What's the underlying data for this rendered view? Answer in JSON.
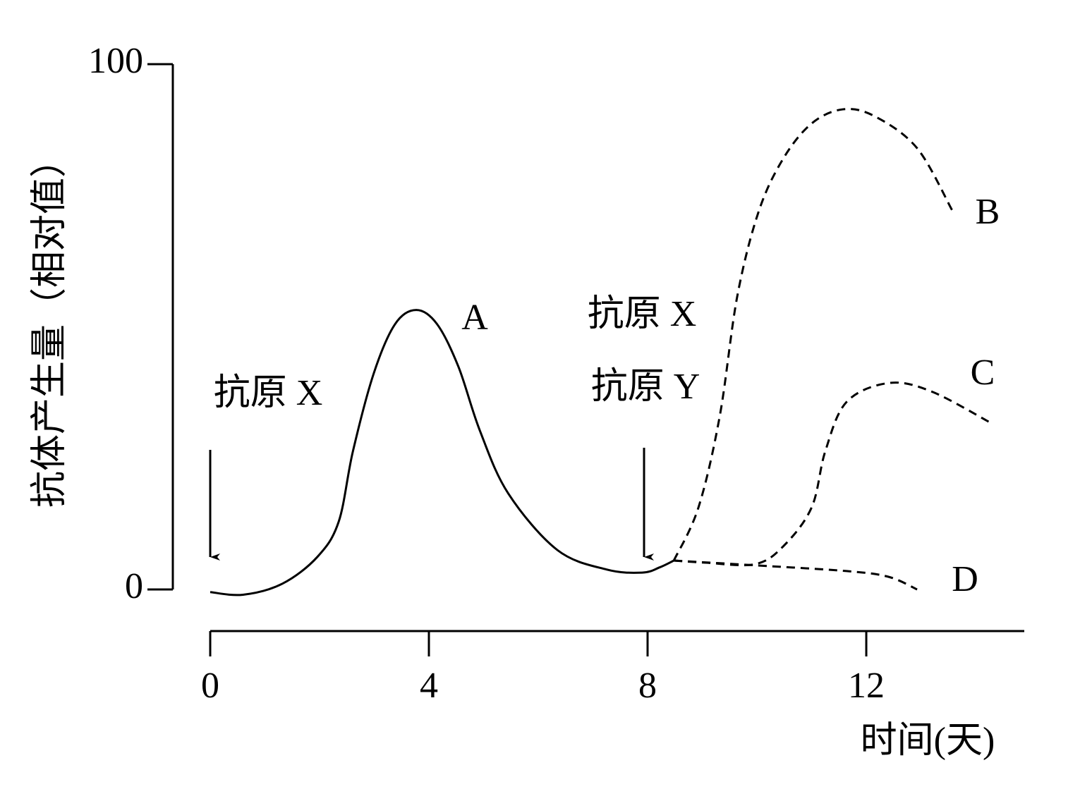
{
  "chart_data": {
    "type": "line",
    "ylabel": "抗体产生量（相对值）",
    "xlabel": "时间(天)",
    "xlim": [
      0,
      14.89
    ],
    "xticks": [
      0,
      4,
      8,
      12
    ],
    "ylim": [
      0,
      100
    ],
    "yticks": [
      0,
      100
    ],
    "annotations": [
      "抗原 X",
      "抗原 X",
      "抗原 Y"
    ],
    "series": [
      {
        "name": "A",
        "color": "#000000",
        "style": "solid",
        "x": [
          0,
          0.6,
          1.32,
          1.96,
          2.35,
          2.61,
          2.99,
          3.38,
          3.77,
          4.15,
          4.54,
          4.93,
          5.45,
          6.35,
          7.25,
          7.9,
          8.22,
          8.48
        ],
        "values": [
          -0.5,
          -1,
          1.1,
          6.2,
          12.9,
          26.3,
          41.1,
          50.5,
          53.2,
          50.5,
          42.4,
          30.3,
          18.3,
          7.5,
          3.8,
          3.2,
          4.2,
          5.5
        ]
      },
      {
        "name": "B",
        "color": "#000000",
        "style": "dashed",
        "x": [
          8.48,
          8.93,
          9.32,
          9.64,
          10.03,
          10.48,
          11.0,
          11.57,
          12.15,
          12.93,
          13.57
        ],
        "values": [
          5.5,
          15.6,
          33.0,
          55.8,
          71.9,
          82.0,
          88.7,
          91.4,
          90.1,
          84.0,
          72.2
        ]
      },
      {
        "name": "C",
        "color": "#000000",
        "style": "dashed",
        "x": [
          8.48,
          9.06,
          9.96,
          10.48,
          11.0,
          11.25,
          11.64,
          12.41,
          13.19,
          14.28
        ],
        "values": [
          5.5,
          5.1,
          4.8,
          8.2,
          15.6,
          26.3,
          35.7,
          39.3,
          37.7,
          31.7
        ]
      },
      {
        "name": "D",
        "color": "#000000",
        "style": "dashed",
        "x": [
          8.48,
          9.96,
          11.64,
          12.41,
          12.93
        ],
        "values": [
          5.5,
          4.6,
          3.5,
          2.4,
          0
        ]
      }
    ]
  }
}
